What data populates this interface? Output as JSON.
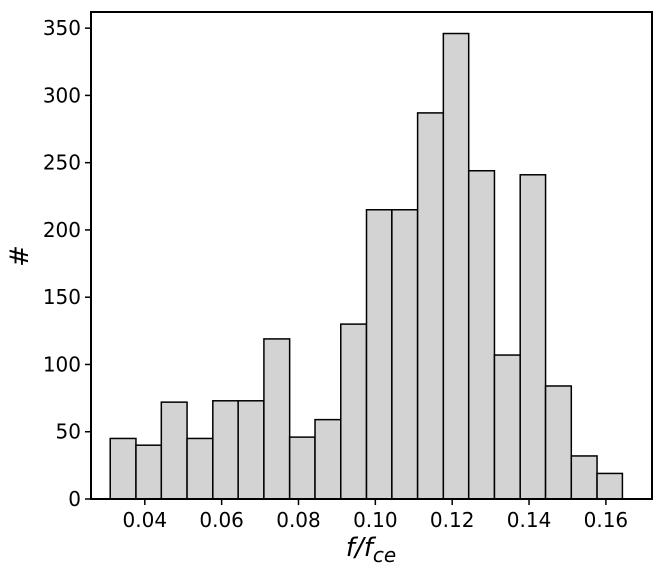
{
  "chart_data": {
    "type": "bar",
    "subtype": "histogram",
    "title": "",
    "xlabel": "f/f",
    "xlabel_subscript": "ce",
    "ylabel": "#",
    "xlim": [
      0.026,
      0.172
    ],
    "ylim": [
      0,
      362
    ],
    "bin_edges": [
      0.031,
      0.0377,
      0.0443,
      0.051,
      0.0577,
      0.0643,
      0.071,
      0.0777,
      0.0843,
      0.091,
      0.0977,
      0.1043,
      0.111,
      0.1177,
      0.1243,
      0.131,
      0.1377,
      0.1443,
      0.151,
      0.1577,
      0.1643
    ],
    "values": [
      45,
      40,
      72,
      45,
      73,
      73,
      119,
      46,
      59,
      130,
      215,
      215,
      287,
      346,
      244,
      107,
      241,
      84,
      32,
      19
    ],
    "x_ticks": [
      {
        "value": 0.04,
        "label": "0.04"
      },
      {
        "value": 0.06,
        "label": "0.06"
      },
      {
        "value": 0.08,
        "label": "0.08"
      },
      {
        "value": 0.1,
        "label": "0.10"
      },
      {
        "value": 0.12,
        "label": "0.12"
      },
      {
        "value": 0.14,
        "label": "0.14"
      },
      {
        "value": 0.16,
        "label": "0.16"
      }
    ],
    "y_ticks": [
      {
        "value": 0,
        "label": "0"
      },
      {
        "value": 50,
        "label": "50"
      },
      {
        "value": 100,
        "label": "100"
      },
      {
        "value": 150,
        "label": "150"
      },
      {
        "value": 200,
        "label": "200"
      },
      {
        "value": 250,
        "label": "250"
      },
      {
        "value": 300,
        "label": "300"
      },
      {
        "value": 350,
        "label": "350"
      }
    ],
    "grid": false,
    "legend": "none",
    "colors": {
      "bar_fill": "#d3d3d3",
      "bar_edge": "#000000",
      "axis": "#000000"
    }
  }
}
